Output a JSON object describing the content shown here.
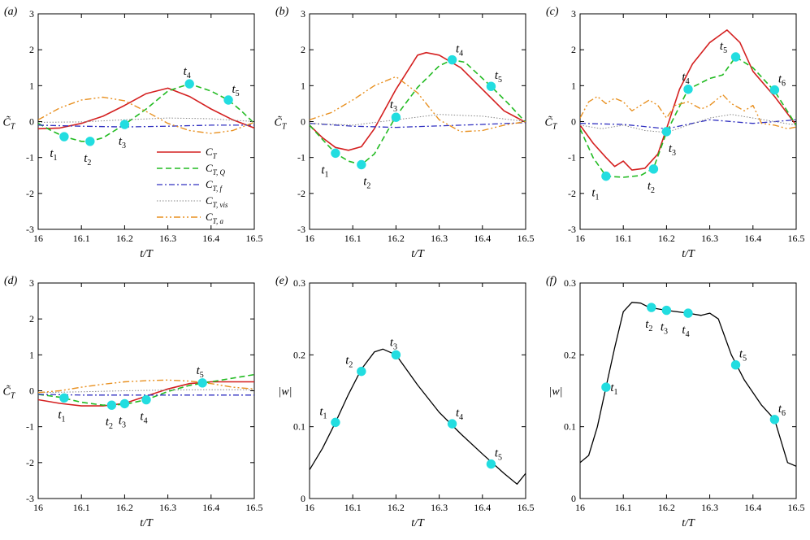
{
  "chart_data": [
    {
      "type": "line",
      "panel": "(a)",
      "xlabel": "t/T",
      "ylabel": "C̃T",
      "xlim": [
        16,
        16.5
      ],
      "ylim": [
        -3,
        3
      ],
      "xticks": [
        "16",
        "16.1",
        "16.2",
        "16.3",
        "16.4",
        "16.5"
      ],
      "yticks": [
        "-3",
        "-2",
        "-1",
        "0",
        "1",
        "2",
        "3"
      ],
      "legend": {
        "placement": "lower-right",
        "entries": [
          {
            "series": "CT",
            "base": "C",
            "sub": "T"
          },
          {
            "series": "CTQ",
            "base": "C",
            "sub": "T, Q"
          },
          {
            "series": "CTf",
            "base": "C",
            "sub": "T, f"
          },
          {
            "series": "CTvis",
            "base": "C",
            "sub": "T, vis"
          },
          {
            "series": "CTa",
            "base": "C",
            "sub": "T, a"
          }
        ]
      },
      "series": [
        {
          "key": "CT",
          "color": "#d42020",
          "x": [
            16,
            16.05,
            16.1,
            16.15,
            16.2,
            16.25,
            16.3,
            16.35,
            16.4,
            16.45,
            16.5
          ],
          "y": [
            -0.2,
            -0.18,
            -0.05,
            0.15,
            0.45,
            0.78,
            0.93,
            0.7,
            0.35,
            0.05,
            -0.18
          ]
        },
        {
          "key": "CTQ",
          "color": "#22bb22",
          "x": [
            16,
            16.03,
            16.06,
            16.1,
            16.12,
            16.15,
            16.2,
            16.25,
            16.3,
            16.35,
            16.4,
            16.44,
            16.47,
            16.5
          ],
          "y": [
            -0.05,
            -0.25,
            -0.42,
            -0.55,
            -0.55,
            -0.45,
            -0.08,
            0.35,
            0.85,
            1.05,
            0.85,
            0.6,
            0.3,
            -0.05
          ]
        },
        {
          "key": "CTf",
          "color": "#3030c0",
          "x": [
            16,
            16.1,
            16.2,
            16.3,
            16.4,
            16.5
          ],
          "y": [
            -0.1,
            -0.13,
            -0.15,
            -0.13,
            -0.1,
            -0.1
          ]
        },
        {
          "key": "CTvis",
          "color": "#888888",
          "x": [
            16,
            16.1,
            16.2,
            16.3,
            16.4,
            16.5
          ],
          "y": [
            -0.02,
            -0.01,
            0.05,
            0.1,
            0.08,
            0.0
          ]
        },
        {
          "key": "CTa",
          "color": "#e89020",
          "x": [
            16,
            16.05,
            16.1,
            16.15,
            16.2,
            16.25,
            16.3,
            16.35,
            16.4,
            16.45,
            16.5
          ],
          "y": [
            0.05,
            0.38,
            0.6,
            0.68,
            0.58,
            0.28,
            -0.05,
            -0.25,
            -0.33,
            -0.25,
            -0.02
          ]
        }
      ],
      "markers": [
        {
          "label": "t",
          "sub": "1",
          "x": 16.06,
          "y": -0.42,
          "pos": "bl"
        },
        {
          "label": "t",
          "sub": "2",
          "x": 16.12,
          "y": -0.55,
          "pos": "b"
        },
        {
          "label": "t",
          "sub": "3",
          "x": 16.2,
          "y": -0.08,
          "pos": "b"
        },
        {
          "label": "t",
          "sub": "4",
          "x": 16.35,
          "y": 1.05,
          "pos": "t"
        },
        {
          "label": "t",
          "sub": "5",
          "x": 16.44,
          "y": 0.6,
          "pos": "tr"
        }
      ]
    },
    {
      "type": "line",
      "panel": "(b)",
      "xlabel": "t/T",
      "ylabel": "C̃T",
      "xlim": [
        16,
        16.5
      ],
      "ylim": [
        -3,
        3
      ],
      "xticks": [
        "16",
        "16.1",
        "16.2",
        "16.3",
        "16.4",
        "16.5"
      ],
      "yticks": [
        "-3",
        "-2",
        "-1",
        "0",
        "1",
        "2",
        "3"
      ],
      "series": [
        {
          "key": "CT",
          "color": "#d42020",
          "x": [
            16,
            16.03,
            16.06,
            16.09,
            16.12,
            16.15,
            16.2,
            16.25,
            16.27,
            16.3,
            16.35,
            16.4,
            16.45,
            16.5
          ],
          "y": [
            -0.1,
            -0.45,
            -0.72,
            -0.8,
            -0.7,
            -0.2,
            0.9,
            1.85,
            1.92,
            1.85,
            1.5,
            0.9,
            0.3,
            -0.02
          ]
        },
        {
          "key": "CTQ",
          "color": "#22bb22",
          "x": [
            16,
            16.03,
            16.06,
            16.09,
            16.12,
            16.15,
            16.2,
            16.25,
            16.3,
            16.33,
            16.36,
            16.42,
            16.46,
            16.5
          ],
          "y": [
            -0.1,
            -0.5,
            -0.88,
            -1.1,
            -1.2,
            -0.9,
            0.15,
            0.95,
            1.55,
            1.72,
            1.65,
            0.98,
            0.5,
            -0.02
          ]
        },
        {
          "key": "CTf",
          "color": "#3030c0",
          "x": [
            16,
            16.1,
            16.2,
            16.3,
            16.4,
            16.5
          ],
          "y": [
            -0.05,
            -0.13,
            -0.16,
            -0.12,
            -0.08,
            -0.03
          ]
        },
        {
          "key": "CTvis",
          "color": "#888888",
          "x": [
            16,
            16.1,
            16.2,
            16.3,
            16.4,
            16.5
          ],
          "y": [
            -0.05,
            -0.1,
            0.05,
            0.2,
            0.15,
            0.0
          ]
        },
        {
          "key": "CTa",
          "color": "#e89020",
          "x": [
            16,
            16.05,
            16.1,
            16.15,
            16.2,
            16.25,
            16.3,
            16.35,
            16.4,
            16.45,
            16.5
          ],
          "y": [
            0.05,
            0.25,
            0.6,
            1.0,
            1.25,
            0.8,
            0.05,
            -0.28,
            -0.25,
            -0.1,
            0.0
          ]
        }
      ],
      "markers": [
        {
          "label": "t",
          "sub": "1",
          "x": 16.06,
          "y": -0.88,
          "pos": "bl"
        },
        {
          "label": "t",
          "sub": "2",
          "x": 16.12,
          "y": -1.2,
          "pos": "br"
        },
        {
          "label": "t",
          "sub": "3",
          "x": 16.2,
          "y": 0.12,
          "pos": "t"
        },
        {
          "label": "t",
          "sub": "4",
          "x": 16.33,
          "y": 1.72,
          "pos": "tr"
        },
        {
          "label": "t",
          "sub": "5",
          "x": 16.42,
          "y": 0.98,
          "pos": "tr"
        }
      ]
    },
    {
      "type": "line",
      "panel": "(c)",
      "xlabel": "t/T",
      "ylabel": "C̃T",
      "xlim": [
        16,
        16.5
      ],
      "ylim": [
        -3,
        3
      ],
      "xticks": [
        "16",
        "16.1",
        "16.2",
        "16.3",
        "16.4",
        "16.5"
      ],
      "yticks": [
        "-3",
        "-2",
        "-1",
        "0",
        "1",
        "2",
        "3"
      ],
      "series": [
        {
          "key": "CT",
          "color": "#d42020",
          "x": [
            16,
            16.03,
            16.06,
            16.08,
            16.1,
            16.12,
            16.15,
            16.18,
            16.2,
            16.23,
            16.26,
            16.3,
            16.34,
            16.37,
            16.4,
            16.45,
            16.5
          ],
          "y": [
            -0.1,
            -0.6,
            -1.0,
            -1.25,
            -1.1,
            -1.35,
            -1.3,
            -0.9,
            -0.2,
            0.9,
            1.6,
            2.2,
            2.55,
            2.2,
            1.4,
            0.7,
            -0.1
          ]
        },
        {
          "key": "CTQ",
          "color": "#22bb22",
          "x": [
            16,
            16.03,
            16.06,
            16.1,
            16.14,
            16.17,
            16.2,
            16.25,
            16.3,
            16.33,
            16.36,
            16.4,
            16.45,
            16.5
          ],
          "y": [
            -0.2,
            -1.0,
            -1.52,
            -1.55,
            -1.5,
            -1.3,
            -0.3,
            0.9,
            1.2,
            1.3,
            1.8,
            1.5,
            0.85,
            -0.1
          ]
        },
        {
          "key": "CTf",
          "color": "#3030c0",
          "x": [
            16,
            16.1,
            16.2,
            16.3,
            16.4,
            16.5
          ],
          "y": [
            -0.05,
            -0.08,
            -0.2,
            0.05,
            -0.05,
            0.05
          ]
        },
        {
          "key": "CTvis",
          "color": "#888888",
          "x": [
            16,
            16.05,
            16.1,
            16.15,
            16.2,
            16.25,
            16.3,
            16.35,
            16.4,
            16.5
          ],
          "y": [
            -0.1,
            -0.2,
            -0.1,
            -0.25,
            -0.3,
            -0.1,
            0.1,
            0.2,
            0.1,
            -0.1
          ]
        },
        {
          "key": "CTa",
          "color": "#e89020",
          "x": [
            16,
            16.02,
            16.04,
            16.06,
            16.08,
            16.1,
            16.12,
            16.14,
            16.16,
            16.18,
            16.2,
            16.22,
            16.25,
            16.28,
            16.3,
            16.33,
            16.35,
            16.38,
            16.4,
            16.42,
            16.45,
            16.48,
            16.5
          ],
          "y": [
            0.1,
            0.55,
            0.7,
            0.5,
            0.65,
            0.55,
            0.3,
            0.45,
            0.6,
            0.45,
            0.1,
            0.45,
            0.55,
            0.35,
            0.45,
            0.75,
            0.5,
            0.3,
            0.45,
            -0.05,
            -0.1,
            -0.2,
            -0.15
          ]
        }
      ],
      "markers": [
        {
          "label": "t",
          "sub": "1",
          "x": 16.06,
          "y": -1.52,
          "pos": "bl"
        },
        {
          "label": "t",
          "sub": "2",
          "x": 16.17,
          "y": -1.32,
          "pos": "b"
        },
        {
          "label": "t",
          "sub": "3",
          "x": 16.2,
          "y": -0.28,
          "pos": "br"
        },
        {
          "label": "t",
          "sub": "4",
          "x": 16.25,
          "y": 0.9,
          "pos": "t"
        },
        {
          "label": "t",
          "sub": "5",
          "x": 16.36,
          "y": 1.8,
          "pos": "tl"
        },
        {
          "label": "t",
          "sub": "6",
          "x": 16.45,
          "y": 0.88,
          "pos": "tr"
        }
      ]
    },
    {
      "type": "line",
      "panel": "(d)",
      "xlabel": "t/T",
      "ylabel": "C̃T",
      "xlim": [
        16,
        16.5
      ],
      "ylim": [
        -3,
        3
      ],
      "xticks": [
        "16",
        "16.1",
        "16.2",
        "16.3",
        "16.4",
        "16.5"
      ],
      "yticks": [
        "-3",
        "-2",
        "-1",
        "0",
        "1",
        "2",
        "3"
      ],
      "series": [
        {
          "key": "CT",
          "color": "#d42020",
          "x": [
            16,
            16.05,
            16.1,
            16.15,
            16.2,
            16.25,
            16.3,
            16.35,
            16.4,
            16.45,
            16.5
          ],
          "y": [
            -0.25,
            -0.35,
            -0.42,
            -0.42,
            -0.35,
            -0.15,
            0.05,
            0.2,
            0.25,
            0.25,
            0.25
          ]
        },
        {
          "key": "CTQ",
          "color": "#22bb22",
          "x": [
            16,
            16.05,
            16.1,
            16.15,
            16.2,
            16.25,
            16.3,
            16.35,
            16.4,
            16.45,
            16.5
          ],
          "y": [
            -0.1,
            -0.18,
            -0.32,
            -0.4,
            -0.38,
            -0.25,
            -0.02,
            0.15,
            0.25,
            0.35,
            0.45
          ]
        },
        {
          "key": "CTf",
          "color": "#3030c0",
          "x": [
            16,
            16.1,
            16.2,
            16.3,
            16.4,
            16.5
          ],
          "y": [
            -0.1,
            -0.12,
            -0.12,
            -0.12,
            -0.12,
            -0.12
          ]
        },
        {
          "key": "CTvis",
          "color": "#888888",
          "x": [
            16,
            16.1,
            16.2,
            16.3,
            16.4,
            16.5
          ],
          "y": [
            -0.05,
            -0.03,
            0.0,
            0.02,
            0.03,
            0.03
          ]
        },
        {
          "key": "CTa",
          "color": "#e89020",
          "x": [
            16,
            16.05,
            16.1,
            16.15,
            16.2,
            16.25,
            16.3,
            16.35,
            16.4,
            16.45,
            16.5
          ],
          "y": [
            -0.05,
            0.0,
            0.1,
            0.18,
            0.25,
            0.28,
            0.3,
            0.27,
            0.2,
            0.1,
            0.05
          ]
        }
      ],
      "markers": [
        {
          "label": "t",
          "sub": "1",
          "x": 16.06,
          "y": -0.2,
          "pos": "b"
        },
        {
          "label": "t",
          "sub": "2",
          "x": 16.17,
          "y": -0.4,
          "pos": "b"
        },
        {
          "label": "t",
          "sub": "3",
          "x": 16.2,
          "y": -0.36,
          "pos": "b"
        },
        {
          "label": "t",
          "sub": "4",
          "x": 16.25,
          "y": -0.25,
          "pos": "b"
        },
        {
          "label": "t",
          "sub": "5",
          "x": 16.38,
          "y": 0.22,
          "pos": "t"
        }
      ]
    },
    {
      "type": "line",
      "panel": "(e)",
      "xlabel": "t/T",
      "ylabel": "|w|",
      "xlim": [
        16,
        16.5
      ],
      "ylim": [
        0,
        0.3
      ],
      "xticks": [
        "16",
        "16.1",
        "16.2",
        "16.3",
        "16.4",
        "16.5"
      ],
      "yticks": [
        "0",
        "0.1",
        "0.2",
        "0.3"
      ],
      "series": [
        {
          "key": "w",
          "color": "#000000",
          "x": [
            16,
            16.03,
            16.06,
            16.09,
            16.12,
            16.15,
            16.17,
            16.2,
            16.25,
            16.3,
            16.35,
            16.4,
            16.45,
            16.48,
            16.5
          ],
          "y": [
            0.04,
            0.07,
            0.106,
            0.145,
            0.18,
            0.204,
            0.208,
            0.2,
            0.158,
            0.12,
            0.09,
            0.062,
            0.035,
            0.02,
            0.035
          ]
        }
      ],
      "markers": [
        {
          "label": "t",
          "sub": "1",
          "x": 16.06,
          "y": 0.106,
          "pos": "tl"
        },
        {
          "label": "t",
          "sub": "2",
          "x": 16.12,
          "y": 0.177,
          "pos": "tl"
        },
        {
          "label": "t",
          "sub": "3",
          "x": 16.2,
          "y": 0.2,
          "pos": "t"
        },
        {
          "label": "t",
          "sub": "4",
          "x": 16.33,
          "y": 0.104,
          "pos": "tr"
        },
        {
          "label": "t",
          "sub": "5",
          "x": 16.42,
          "y": 0.048,
          "pos": "tr"
        }
      ]
    },
    {
      "type": "line",
      "panel": "(f)",
      "xlabel": "t/T",
      "ylabel": "|w|",
      "xlim": [
        16,
        16.5
      ],
      "ylim": [
        0,
        0.3
      ],
      "xticks": [
        "16",
        "16.1",
        "16.2",
        "16.3",
        "16.4",
        "16.5"
      ],
      "yticks": [
        "0",
        "0.1",
        "0.2",
        "0.3"
      ],
      "series": [
        {
          "key": "w",
          "color": "#000000",
          "x": [
            16,
            16.02,
            16.04,
            16.06,
            16.08,
            16.1,
            16.12,
            16.14,
            16.16,
            16.2,
            16.25,
            16.28,
            16.3,
            16.32,
            16.35,
            16.38,
            16.42,
            16.45,
            16.48,
            16.5
          ],
          "y": [
            0.05,
            0.06,
            0.1,
            0.155,
            0.21,
            0.26,
            0.273,
            0.272,
            0.266,
            0.262,
            0.258,
            0.255,
            0.258,
            0.25,
            0.2,
            0.165,
            0.13,
            0.11,
            0.05,
            0.045
          ]
        }
      ],
      "markers": [
        {
          "label": "t",
          "sub": "1",
          "x": 16.06,
          "y": 0.155,
          "pos": "r"
        },
        {
          "label": "t",
          "sub": "2",
          "x": 16.165,
          "y": 0.266,
          "pos": "b"
        },
        {
          "label": "t",
          "sub": "3",
          "x": 16.2,
          "y": 0.262,
          "pos": "b"
        },
        {
          "label": "t",
          "sub": "4",
          "x": 16.25,
          "y": 0.258,
          "pos": "b"
        },
        {
          "label": "t",
          "sub": "5",
          "x": 16.36,
          "y": 0.186,
          "pos": "tr"
        },
        {
          "label": "t",
          "sub": "6",
          "x": 16.45,
          "y": 0.11,
          "pos": "tr"
        }
      ]
    }
  ]
}
